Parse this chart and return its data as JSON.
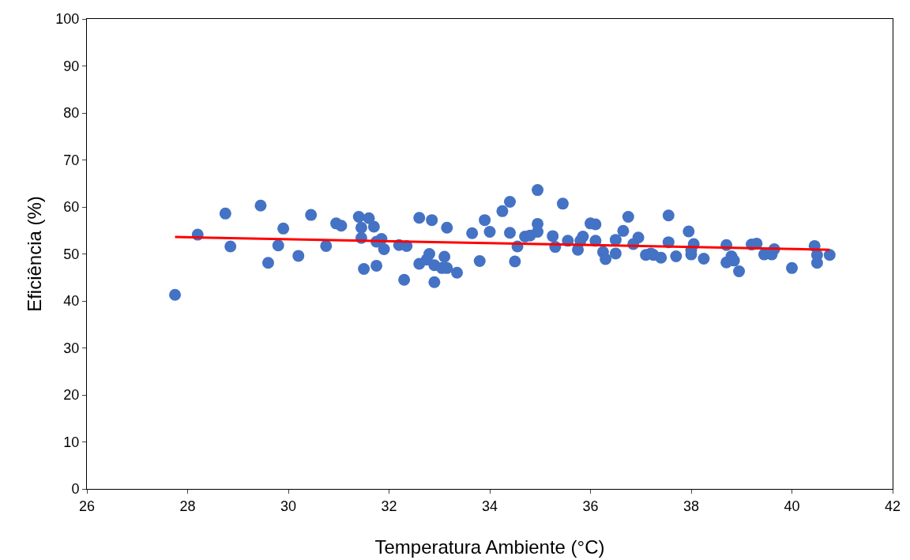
{
  "chart_data": {
    "type": "scatter",
    "xlabel": "Temperatura Ambiente (°C)",
    "ylabel": "Eficiência (%)",
    "xlim": [
      26,
      42
    ],
    "xticks": [
      26,
      28,
      30,
      32,
      34,
      36,
      38,
      40,
      42
    ],
    "ylim": [
      0,
      100
    ],
    "yticks": [
      0,
      10,
      20,
      30,
      40,
      50,
      60,
      70,
      80,
      90,
      100
    ],
    "grid": false,
    "marker": "circle",
    "series": [
      {
        "color": "#4472c4",
        "x": [
          27.75,
          28.2,
          28.75,
          28.85,
          29.45,
          29.6,
          29.8,
          29.9,
          30.2,
          30.45,
          30.75,
          30.95,
          31.05,
          31.4,
          31.45,
          31.45,
          31.5,
          31.6,
          31.7,
          31.75,
          31.75,
          31.85,
          31.9,
          32.2,
          32.3,
          32.35,
          32.6,
          32.6,
          32.75,
          32.8,
          32.85,
          32.9,
          32.9,
          33.05,
          33.1,
          33.15,
          33.15,
          33.35,
          33.65,
          33.8,
          33.9,
          34,
          34.25,
          34.4,
          34.4,
          34.5,
          34.55,
          34.7,
          34.8,
          34.95,
          34.95,
          34.95,
          35.25,
          35.3,
          35.45,
          35.55,
          35.75,
          35.8,
          35.85,
          36,
          36.1,
          36.1,
          36.25,
          36.3,
          36.5,
          36.5,
          36.65,
          36.75,
          36.85,
          36.95,
          37.1,
          37.2,
          37.25,
          37.4,
          37.55,
          37.55,
          37.7,
          37.95,
          38,
          38,
          38.05,
          38.25,
          38.7,
          38.7,
          38.8,
          38.85,
          38.95,
          39.2,
          39.3,
          39.45,
          39.6,
          39.65,
          40,
          40.45,
          40.5,
          40.5,
          40.75
        ],
        "values": [
          41.3,
          54.1,
          58.6,
          51.6,
          60.3,
          48.1,
          51.8,
          55.4,
          49.6,
          58.3,
          51.7,
          56.5,
          56,
          57.9,
          55.6,
          53.4,
          46.8,
          57.6,
          55.8,
          52.6,
          47.5,
          53.2,
          51,
          51.9,
          44.5,
          51.7,
          47.9,
          57.7,
          48.8,
          50,
          57.2,
          47.6,
          44,
          47,
          49.4,
          55.6,
          47,
          46,
          54.4,
          48.5,
          57.2,
          54.7,
          59.1,
          61.1,
          54.5,
          48.4,
          51.6,
          53.7,
          53.9,
          63.6,
          56.4,
          54.7,
          53.8,
          51.5,
          60.7,
          52.8,
          50.9,
          52.8,
          53.7,
          56.5,
          56.3,
          52.8,
          50.4,
          48.9,
          53,
          50.1,
          54.9,
          57.9,
          52.1,
          53.5,
          49.8,
          50.1,
          49.8,
          49.2,
          58.2,
          52.5,
          49.5,
          54.8,
          50.8,
          49.9,
          52.1,
          49,
          48.2,
          51.9,
          49.5,
          48.6,
          46.3,
          52,
          52.2,
          49.9,
          49.9,
          51,
          47,
          51.7,
          49.8,
          48.1,
          49.8
        ]
      },
      {
        "type": "line",
        "color": "#ff0000",
        "marker": "none",
        "line_style": "solid",
        "x": [
          27.75,
          40.75
        ],
        "values": [
          53.6,
          50.9
        ]
      }
    ]
  }
}
